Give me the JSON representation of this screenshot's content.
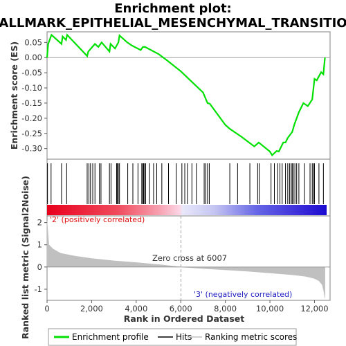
{
  "chart_data": {
    "type": "line",
    "title_line1": "Enrichment plot:",
    "title_line2": "HALLMARK_EPITHELIAL_MESENCHYMAL_TRANSITION",
    "ylabel_top": "Enrichment score (ES)",
    "ylabel_bottom": "Ranked list metric (Signal2Noise)",
    "xlabel": "Rank in Ordered Dataset",
    "x_ticks": [
      "0",
      "2,000",
      "4,000",
      "6,000",
      "8,000",
      "10,000",
      "12,000"
    ],
    "x_tick_values": [
      0,
      2000,
      4000,
      6000,
      8000,
      10000,
      12000
    ],
    "xlim": [
      0,
      12700
    ],
    "es_yticks": [
      "0.05",
      "0.00",
      "-0.05",
      "-0.10",
      "-0.15",
      "-0.20",
      "-0.25",
      "-0.30"
    ],
    "es_ytick_values": [
      0.05,
      0.0,
      -0.05,
      -0.1,
      -0.15,
      -0.2,
      -0.25,
      -0.3
    ],
    "es_ylim": [
      -0.335,
      0.085
    ],
    "metric_yticks": [
      "2",
      "1",
      "0",
      "-1"
    ],
    "metric_ytick_values": [
      2,
      1,
      0,
      -1
    ],
    "metric_ylim": [
      -1.5,
      2.3
    ],
    "zero_cross_label": "Zero cross at 6007",
    "zero_cross_rank": 6007,
    "pos_label": "'2' (positively correlated)",
    "neg_label": "'3' (negatively correlated)",
    "legend": [
      "Enrichment profile",
      "Hits",
      "Ranking metric scores"
    ],
    "colors": {
      "es_line": "#00e000",
      "hits": "#000000",
      "metric_fill": "#c0c0c0",
      "pos": "#e8001c",
      "neg": "#1a0ad0",
      "pos_label": "#e01010",
      "neg_label": "#2020c0"
    },
    "es_curve": {
      "x": [
        0,
        50,
        200,
        650,
        700,
        850,
        900,
        1800,
        1850,
        2150,
        2300,
        2450,
        2800,
        2850,
        3050,
        3200,
        3250,
        3600,
        3800,
        4200,
        4300,
        4400,
        5000,
        5400,
        6000,
        6500,
        7000,
        7200,
        7300,
        8000,
        8200,
        8700,
        9300,
        9500,
        10000,
        10100,
        10300,
        10400,
        10500,
        10600,
        10700,
        10800,
        10900,
        11000,
        11100,
        11200,
        11300,
        11500,
        11700,
        11900,
        12000,
        12100,
        12300,
        12400,
        12470
      ],
      "y": [
        0.0,
        0.045,
        0.075,
        0.045,
        0.07,
        0.058,
        0.075,
        0.005,
        0.02,
        0.045,
        0.035,
        0.05,
        0.02,
        0.045,
        0.03,
        0.05,
        0.073,
        0.05,
        0.04,
        0.025,
        0.035,
        0.035,
        0.012,
        -0.01,
        -0.045,
        -0.08,
        -0.115,
        -0.15,
        -0.152,
        -0.222,
        -0.235,
        -0.26,
        -0.293,
        -0.28,
        -0.31,
        -0.322,
        -0.308,
        -0.31,
        -0.295,
        -0.28,
        -0.28,
        -0.265,
        -0.255,
        -0.245,
        -0.22,
        -0.2,
        -0.18,
        -0.15,
        -0.16,
        -0.138,
        -0.07,
        -0.075,
        -0.048,
        -0.055,
        0.0
      ]
    },
    "metric_curve": {
      "x": [
        0,
        80,
        250,
        600,
        1200,
        2000,
        3000,
        4000,
        5000,
        6007,
        7000,
        8000,
        9000,
        10000,
        11000,
        11600,
        12000,
        12200,
        12350,
        12420,
        12470
      ],
      "y": [
        2.05,
        1.0,
        0.82,
        0.62,
        0.5,
        0.38,
        0.28,
        0.2,
        0.11,
        0.0,
        -0.07,
        -0.13,
        -0.19,
        -0.27,
        -0.35,
        -0.42,
        -0.52,
        -0.62,
        -0.8,
        -1.1,
        -1.4
      ]
    },
    "hits": [
      20,
      180,
      650,
      880,
      1800,
      1880,
      1950,
      2050,
      2150,
      2350,
      2420,
      2800,
      2870,
      3120,
      3150,
      3200,
      3250,
      3620,
      3850,
      4080,
      4250,
      4300,
      4330,
      4380,
      4420,
      4600,
      4780,
      4920,
      5150,
      5450,
      5800,
      6050,
      6180,
      6300,
      6500,
      6700,
      7050,
      7120,
      7200,
      7280,
      8200,
      8550,
      9100,
      9450,
      9520,
      10050,
      10200,
      10350,
      10450,
      10550,
      10700,
      10800,
      10880,
      10950,
      11000,
      11050,
      11120,
      11200,
      11300,
      11550,
      11800,
      11900,
      11950,
      12000,
      12200,
      12400
    ]
  }
}
